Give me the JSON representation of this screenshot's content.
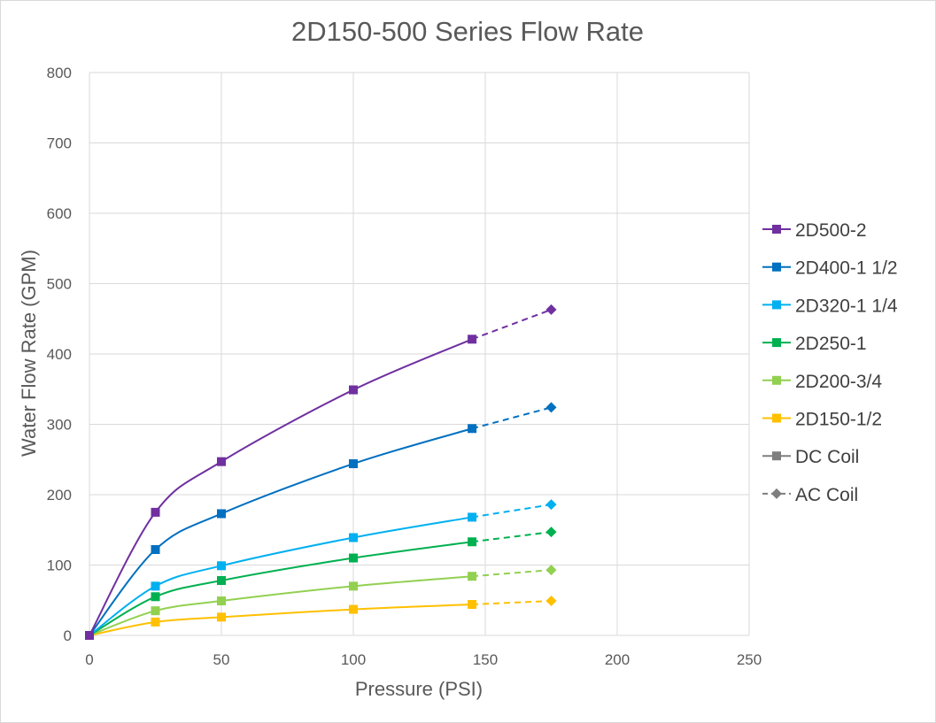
{
  "chart_data": {
    "type": "line",
    "title": "2D150-500 Series Flow Rate",
    "xlabel": "Pressure (PSI)",
    "ylabel": "Water Flow Rate (GPM)",
    "xlim": [
      0,
      250
    ],
    "ylim": [
      0,
      800
    ],
    "x_ticks": [
      0,
      50,
      100,
      150,
      200,
      250
    ],
    "y_ticks": [
      0,
      100,
      200,
      300,
      400,
      500,
      600,
      700,
      800
    ],
    "grid": true,
    "legend_position": "right",
    "dc_x": [
      0,
      25,
      50,
      100,
      145
    ],
    "ac_x": [
      145,
      175
    ],
    "series": [
      {
        "name": "2D500-2",
        "color": "#7030a0",
        "dc_values": [
          0,
          175,
          247,
          349,
          421
        ],
        "ac_values": [
          421,
          463
        ]
      },
      {
        "name": "2D400-1 1/2",
        "color": "#0070c0",
        "dc_values": [
          0,
          122,
          173,
          244,
          294
        ],
        "ac_values": [
          294,
          324
        ]
      },
      {
        "name": "2D320-1 1/4",
        "color": "#00b0f0",
        "dc_values": [
          0,
          70,
          99,
          139,
          168
        ],
        "ac_values": [
          168,
          186
        ]
      },
      {
        "name": "2D250-1",
        "color": "#00b050",
        "dc_values": [
          0,
          55,
          78,
          110,
          133
        ],
        "ac_values": [
          133,
          147
        ]
      },
      {
        "name": "2D200-3/4",
        "color": "#92d050",
        "dc_values": [
          0,
          35,
          49,
          70,
          84
        ],
        "ac_values": [
          84,
          93
        ]
      },
      {
        "name": "2D150-1/2",
        "color": "#ffc000",
        "dc_values": [
          0,
          19,
          26,
          37,
          44
        ],
        "ac_values": [
          44,
          49
        ]
      }
    ],
    "legend_extra": [
      {
        "name": "DC Coil",
        "color": "#7f7f7f",
        "style": "solid",
        "marker": "square"
      },
      {
        "name": "AC Coil",
        "color": "#7f7f7f",
        "style": "dashed",
        "marker": "diamond"
      }
    ]
  }
}
